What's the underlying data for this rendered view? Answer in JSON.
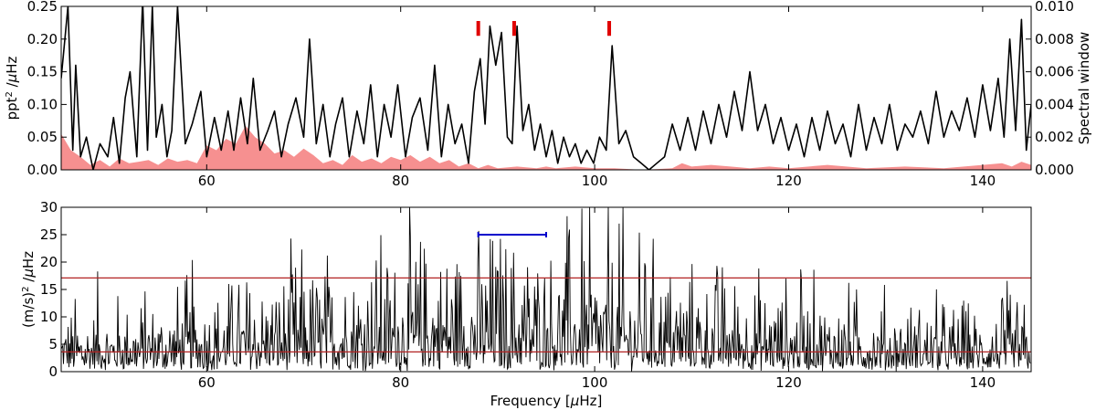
{
  "chart_data": [
    {
      "type": "line",
      "title": "",
      "xlabel": "",
      "xlim": [
        45,
        145
      ],
      "ylim": [
        0,
        0.25
      ],
      "ylabel_parts": {
        "pre": "ppt",
        "sup": "2",
        "post": " /",
        "mu": "μ",
        "unit": "Hz"
      },
      "y2label": "Spectral window",
      "y2lim": [
        0,
        0.01
      ],
      "x_ticks": [
        "60",
        "80",
        "100",
        "120",
        "140"
      ],
      "y_ticks": [
        "0.00",
        "0.05",
        "0.10",
        "0.15",
        "0.20",
        "0.25"
      ],
      "y2_ticks": [
        "0.000",
        "0.002",
        "0.004",
        "0.006",
        "0.008",
        "0.010"
      ],
      "grid": false,
      "series": [
        {
          "color": "#000000",
          "style": "line",
          "x": [
            45.0,
            45.7,
            46.2,
            46.5,
            47.0,
            47.6,
            48.3,
            49.0,
            49.8,
            50.4,
            51.0,
            51.6,
            52.1,
            52.8,
            53.4,
            53.9,
            54.4,
            54.8,
            55.4,
            55.9,
            56.4,
            57.0,
            57.8,
            58.5,
            59.4,
            60.0,
            60.8,
            61.5,
            62.2,
            62.8,
            63.5,
            64.2,
            64.8,
            65.5,
            66.3,
            67.0,
            67.7,
            68.4,
            69.2,
            70.0,
            70.6,
            71.3,
            72.0,
            72.7,
            73.3,
            74.0,
            74.7,
            75.5,
            76.2,
            76.9,
            77.6,
            78.3,
            79.0,
            79.7,
            80.5,
            81.2,
            82.0,
            82.8,
            83.5,
            84.2,
            84.9,
            85.6,
            86.3,
            87.0,
            87.6,
            88.2,
            88.7,
            89.2,
            89.8,
            90.4,
            91.0,
            91.5,
            92.0,
            92.6,
            93.2,
            93.8,
            94.4,
            95.0,
            95.6,
            96.2,
            96.8,
            97.4,
            98.0,
            98.6,
            99.2,
            99.9,
            100.5,
            101.2,
            101.8,
            102.5,
            103.2,
            104.0,
            104.8,
            105.6,
            106.4,
            107.2,
            108.0,
            108.8,
            109.6,
            110.4,
            111.2,
            112.0,
            112.8,
            113.6,
            114.4,
            115.2,
            116.0,
            116.8,
            117.6,
            118.4,
            119.2,
            120.0,
            120.8,
            121.6,
            122.4,
            123.2,
            124.0,
            124.8,
            125.6,
            126.4,
            127.2,
            128.0,
            128.8,
            129.6,
            130.4,
            131.2,
            132.0,
            132.8,
            133.6,
            134.4,
            135.2,
            136.0,
            136.8,
            137.6,
            138.4,
            139.2,
            140.0,
            140.8,
            141.6,
            142.2,
            142.8,
            143.4,
            144.0,
            144.5,
            145.0
          ],
          "y": [
            0.14,
            0.25,
            0.03,
            0.16,
            0.02,
            0.05,
            0.0,
            0.04,
            0.02,
            0.08,
            0.01,
            0.11,
            0.15,
            0.02,
            0.26,
            0.03,
            0.25,
            0.05,
            0.1,
            0.02,
            0.06,
            0.25,
            0.04,
            0.07,
            0.12,
            0.02,
            0.08,
            0.03,
            0.09,
            0.03,
            0.11,
            0.04,
            0.14,
            0.03,
            0.06,
            0.09,
            0.02,
            0.07,
            0.11,
            0.05,
            0.2,
            0.04,
            0.1,
            0.02,
            0.07,
            0.11,
            0.02,
            0.09,
            0.04,
            0.13,
            0.02,
            0.1,
            0.05,
            0.13,
            0.02,
            0.08,
            0.11,
            0.03,
            0.16,
            0.02,
            0.1,
            0.04,
            0.07,
            0.01,
            0.12,
            0.17,
            0.07,
            0.22,
            0.16,
            0.21,
            0.05,
            0.04,
            0.22,
            0.06,
            0.1,
            0.03,
            0.07,
            0.02,
            0.06,
            0.01,
            0.05,
            0.02,
            0.04,
            0.01,
            0.03,
            0.01,
            0.05,
            0.03,
            0.19,
            0.04,
            0.06,
            0.02,
            0.01,
            0.0,
            0.01,
            0.02,
            0.07,
            0.03,
            0.08,
            0.03,
            0.09,
            0.04,
            0.1,
            0.05,
            0.12,
            0.06,
            0.15,
            0.06,
            0.1,
            0.04,
            0.08,
            0.03,
            0.07,
            0.02,
            0.08,
            0.03,
            0.09,
            0.04,
            0.07,
            0.02,
            0.1,
            0.03,
            0.08,
            0.04,
            0.1,
            0.03,
            0.07,
            0.05,
            0.09,
            0.04,
            0.12,
            0.05,
            0.09,
            0.06,
            0.11,
            0.05,
            0.13,
            0.06,
            0.14,
            0.05,
            0.2,
            0.06,
            0.23,
            0.03,
            0.1
          ]
        },
        {
          "color": "#f47c7c",
          "style": "area",
          "axis": "right",
          "x": [
            45.0,
            46.0,
            47.0,
            48.0,
            49.0,
            50.0,
            51.0,
            52.0,
            53.0,
            54.0,
            55.0,
            56.0,
            57.0,
            58.0,
            59.0,
            60.0,
            61.0,
            62.0,
            63.0,
            64.0,
            65.0,
            66.0,
            67.0,
            68.0,
            69.0,
            70.0,
            71.0,
            72.0,
            73.0,
            74.0,
            75.0,
            76.0,
            77.0,
            78.0,
            79.0,
            80.0,
            81.0,
            82.0,
            83.0,
            84.0,
            85.0,
            86.0,
            87.0,
            88.0,
            89.0,
            90.0,
            92.0,
            94.0,
            95.0,
            96.0,
            98.0,
            100.0,
            102.0,
            105.0,
            108.0,
            109.0,
            110.0,
            112.0,
            114.0,
            116.0,
            118.0,
            120.0,
            124.0,
            128.0,
            132.0,
            136.0,
            140.0,
            142.0,
            143.0,
            144.0,
            145.0
          ],
          "y": [
            0.0022,
            0.0012,
            0.0008,
            0.0003,
            0.0006,
            0.0002,
            0.0007,
            0.0004,
            0.0005,
            0.0006,
            0.0003,
            0.0007,
            0.0005,
            0.0006,
            0.0004,
            0.0015,
            0.0012,
            0.0019,
            0.0016,
            0.0027,
            0.002,
            0.0016,
            0.001,
            0.0012,
            0.0008,
            0.0013,
            0.0009,
            0.0004,
            0.0006,
            0.0003,
            0.0009,
            0.0005,
            0.0007,
            0.0004,
            0.0008,
            0.0006,
            0.0009,
            0.0005,
            0.0008,
            0.0004,
            0.0006,
            0.0002,
            0.0004,
            0.0001,
            0.0003,
            0.0001,
            0.0002,
            0.0001,
            0.0002,
            0.0001,
            0.0002,
            0.0001,
            0.0001,
            0.0,
            0.0001,
            0.0004,
            0.0002,
            0.0003,
            0.0002,
            0.0001,
            0.0002,
            0.0001,
            0.0003,
            0.0001,
            0.0002,
            0.0001,
            0.0003,
            0.0004,
            0.0002,
            0.0005,
            0.0003
          ]
        }
      ],
      "markers": {
        "color": "#e00000",
        "x": [
          88.0,
          91.7,
          101.5
        ],
        "y_from": 0.205,
        "y_to": 0.25
      }
    },
    {
      "type": "line",
      "title": "",
      "xlabel_parts": {
        "pre": "Frequency [",
        "mu": "μ",
        "unit": "Hz]"
      },
      "xlim": [
        45,
        145
      ],
      "ylim": [
        0,
        30
      ],
      "ylabel_parts": {
        "pre": "(m/s)",
        "sup": "2",
        "post": " /",
        "mu": "μ",
        "unit": "Hz"
      },
      "x_ticks": [
        "60",
        "80",
        "100",
        "120",
        "140"
      ],
      "y_ticks": [
        "0",
        "5",
        "10",
        "15",
        "20",
        "25",
        "30"
      ],
      "grid": false,
      "noise": {
        "x_start": 45,
        "x_end": 145,
        "step": 0.08,
        "envelope_center": 90,
        "envelope_width": 28,
        "base_level": 4.5,
        "peak_level": 10
      },
      "reference_lines": [
        {
          "y": 17.1,
          "color": "#b22222"
        },
        {
          "y": 3.6,
          "color": "#b22222"
        }
      ],
      "error_bar": {
        "x_center": 91.7,
        "x_from": 88.0,
        "x_to": 95.0,
        "y": 25.0,
        "color": "#0000cc"
      }
    }
  ]
}
